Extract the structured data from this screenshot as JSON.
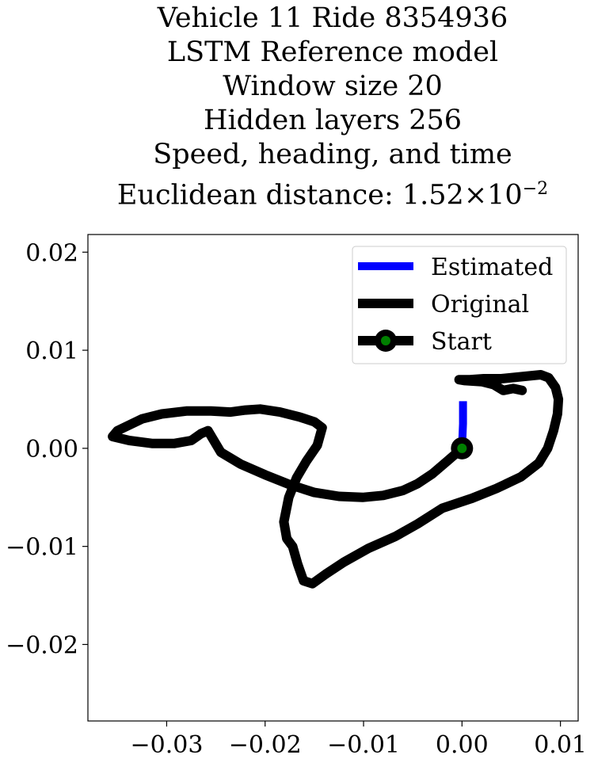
{
  "chart_data": {
    "type": "line",
    "title_lines": [
      "Vehicle 11 Ride 8354936",
      "LSTM Reference model",
      "Window size 20",
      "Hidden layers 256",
      "Speed, heading, and time"
    ],
    "title_distance_prefix": "Euclidean distance: 1.52",
    "title_distance_times": "×",
    "title_distance_base": "10",
    "title_distance_exponent": "−2",
    "xlabel": "",
    "ylabel": "",
    "xlim": [
      -0.038,
      0.0118
    ],
    "ylim": [
      -0.0278,
      0.0218
    ],
    "x_ticks": [
      -0.03,
      -0.02,
      -0.01,
      0.0,
      0.01
    ],
    "x_tick_labels": [
      "−0.03",
      "−0.02",
      "−0.01",
      "0.00",
      "0.01"
    ],
    "y_ticks": [
      0.02,
      0.01,
      0.0,
      -0.01,
      -0.02
    ],
    "y_tick_labels": [
      "0.02",
      "0.01",
      "0.00",
      "−0.01",
      "−0.02"
    ],
    "grid": false,
    "legend_position": "top-right",
    "series": [
      {
        "name": "Estimated",
        "color": "#0000ff",
        "points": [
          [
            0.0,
            0.0
          ],
          [
            0.0001,
            0.0025
          ],
          [
            0.0001,
            0.0048
          ]
        ]
      },
      {
        "name": "Original",
        "color": "#000000",
        "points": [
          [
            0.0,
            0.0
          ],
          [
            -0.0015,
            -0.0013
          ],
          [
            -0.003,
            -0.0026
          ],
          [
            -0.0045,
            -0.0036
          ],
          [
            -0.006,
            -0.0043
          ],
          [
            -0.008,
            -0.0048
          ],
          [
            -0.0101,
            -0.005
          ],
          [
            -0.0125,
            -0.0049
          ],
          [
            -0.015,
            -0.0045
          ],
          [
            -0.0175,
            -0.0037
          ],
          [
            -0.02,
            -0.0027
          ],
          [
            -0.0225,
            -0.0016
          ],
          [
            -0.0245,
            -0.0004
          ],
          [
            -0.0258,
            0.0018
          ],
          [
            -0.0265,
            0.0015
          ],
          [
            -0.0275,
            0.0008
          ],
          [
            -0.0292,
            0.0005
          ],
          [
            -0.0315,
            0.0005
          ],
          [
            -0.0338,
            0.0008
          ],
          [
            -0.0355,
            0.0012
          ],
          [
            -0.035,
            0.0018
          ],
          [
            -0.0325,
            0.003
          ],
          [
            -0.0305,
            0.0035
          ],
          [
            -0.028,
            0.0038
          ],
          [
            -0.0255,
            0.0038
          ],
          [
            -0.0235,
            0.0037
          ],
          [
            -0.022,
            0.0039
          ],
          [
            -0.0205,
            0.004
          ],
          [
            -0.0185,
            0.0037
          ],
          [
            -0.0165,
            0.0032
          ],
          [
            -0.015,
            0.0027
          ],
          [
            -0.0142,
            0.0021
          ],
          [
            -0.0147,
            0.0003
          ],
          [
            -0.0158,
            -0.0013
          ],
          [
            -0.0168,
            -0.003
          ],
          [
            -0.0176,
            -0.005
          ],
          [
            -0.0181,
            -0.0075
          ],
          [
            -0.0178,
            -0.0092
          ],
          [
            -0.0172,
            -0.01
          ],
          [
            -0.0167,
            -0.0118
          ],
          [
            -0.0161,
            -0.0135
          ],
          [
            -0.0152,
            -0.0138
          ],
          [
            -0.0138,
            -0.0128
          ],
          [
            -0.012,
            -0.0116
          ],
          [
            -0.0095,
            -0.0102
          ],
          [
            -0.0068,
            -0.009
          ],
          [
            -0.0045,
            -0.0077
          ],
          [
            -0.002,
            -0.0061
          ],
          [
            0.001,
            -0.0051
          ],
          [
            0.0035,
            -0.0041
          ],
          [
            0.006,
            -0.0029
          ],
          [
            0.0078,
            -0.0015
          ],
          [
            0.0087,
            0.0
          ],
          [
            0.0093,
            0.0018
          ],
          [
            0.0097,
            0.0035
          ],
          [
            0.0098,
            0.005
          ],
          [
            0.0095,
            0.0062
          ],
          [
            0.0088,
            0.0072
          ],
          [
            0.008,
            0.0075
          ],
          [
            0.006,
            0.0073
          ],
          [
            0.004,
            0.0071
          ],
          [
            0.0022,
            0.0071
          ],
          [
            0.0008,
            0.007
          ],
          [
            -0.0003,
            0.007
          ],
          [
            0.0003,
            0.0069
          ],
          [
            0.002,
            0.0068
          ],
          [
            0.0032,
            0.0065
          ],
          [
            0.0042,
            0.0059
          ],
          [
            0.0052,
            0.0061
          ],
          [
            0.0061,
            0.0059
          ]
        ]
      },
      {
        "name": "Start",
        "color": "#000000",
        "marker_face": "#008000",
        "points": [
          [
            0.0,
            0.0
          ]
        ]
      }
    ]
  }
}
